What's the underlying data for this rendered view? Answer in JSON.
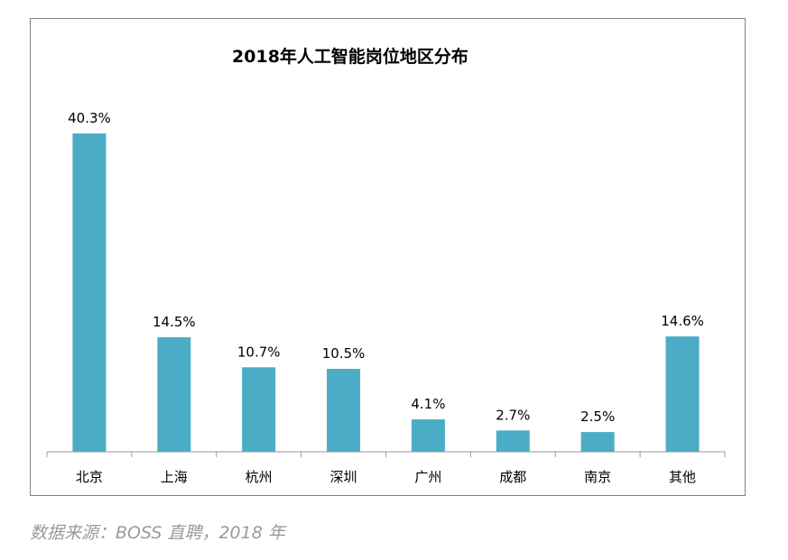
{
  "chart_data": {
    "type": "bar",
    "title": "2018年人工智能岗位地区分布",
    "categories": [
      "北京",
      "上海",
      "杭州",
      "深圳",
      "广州",
      "成都",
      "南京",
      "其他"
    ],
    "values": [
      40.3,
      14.5,
      10.7,
      10.5,
      4.1,
      2.7,
      2.5,
      14.6
    ],
    "value_labels": [
      "40.3%",
      "14.5%",
      "10.7%",
      "10.5%",
      "4.1%",
      "2.7%",
      "2.5%",
      "14.6%"
    ],
    "unit": "%",
    "ylim": [
      0,
      40.3
    ],
    "bar_color": "#4bacc6",
    "grid": false,
    "legend": "none"
  },
  "source": "数据来源：BOSS 直聘，2018 年"
}
